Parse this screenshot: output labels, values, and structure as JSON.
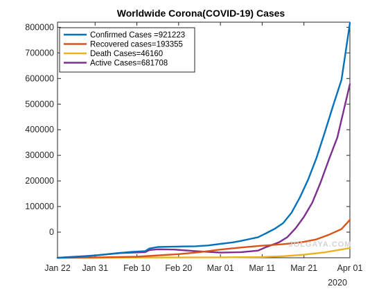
{
  "chart_data": {
    "type": "line",
    "title": "Worldwide Corona(COVID-19) Cases",
    "x_tick_labels": [
      "Jan 22",
      "Jan 31",
      "Feb 10",
      "Feb 20",
      "Mar 01",
      "Mar 11",
      "Mar 21",
      "Apr 01"
    ],
    "x_tick_dates": [
      "2020-01-22",
      "2020-01-31",
      "2020-02-10",
      "2020-02-20",
      "2020-03-01",
      "2020-03-11",
      "2020-03-21",
      "2020-04-01"
    ],
    "x_secondary_label": "2020",
    "xlim": [
      "2020-01-22",
      "2020-04-01"
    ],
    "ylim": [
      -100000,
      820000
    ],
    "y_ticks": [
      0,
      100000,
      200000,
      300000,
      400000,
      500000,
      600000,
      700000,
      800000
    ],
    "grid": false,
    "legend_position": "top-left",
    "series": [
      {
        "name": "Confirmed Cases =921223",
        "color": "#0072BD",
        "points": [
          [
            "2020-01-22",
            -100000
          ],
          [
            "2020-01-26",
            -98000
          ],
          [
            "2020-01-31",
            -91000
          ],
          [
            "2020-02-03",
            -86000
          ],
          [
            "2020-02-06",
            -81000
          ],
          [
            "2020-02-09",
            -77000
          ],
          [
            "2020-02-12",
            -74000
          ],
          [
            "2020-02-13",
            -64000
          ],
          [
            "2020-02-15",
            -58000
          ],
          [
            "2020-02-18",
            -57000
          ],
          [
            "2020-02-21",
            -56000
          ],
          [
            "2020-02-24",
            -55000
          ],
          [
            "2020-02-27",
            -52000
          ],
          [
            "2020-03-01",
            -46000
          ],
          [
            "2020-03-04",
            -40000
          ],
          [
            "2020-03-06",
            -34000
          ],
          [
            "2020-03-08",
            -27000
          ],
          [
            "2020-03-10",
            -20000
          ],
          [
            "2020-03-12",
            -4000
          ],
          [
            "2020-03-14",
            13000
          ],
          [
            "2020-03-16",
            35000
          ],
          [
            "2020-03-18",
            75000
          ],
          [
            "2020-03-20",
            135000
          ],
          [
            "2020-03-22",
            205000
          ],
          [
            "2020-03-24",
            290000
          ],
          [
            "2020-03-26",
            390000
          ],
          [
            "2020-03-28",
            495000
          ],
          [
            "2020-03-30",
            595000
          ],
          [
            "2020-04-01",
            816000
          ]
        ]
      },
      {
        "name": "Recovered cases=193355",
        "color": "#D95319",
        "points": [
          [
            "2020-01-22",
            -100000
          ],
          [
            "2020-01-31",
            -99000
          ],
          [
            "2020-02-10",
            -96000
          ],
          [
            "2020-02-20",
            -86000
          ],
          [
            "2020-02-25",
            -78000
          ],
          [
            "2020-03-01",
            -68000
          ],
          [
            "2020-03-06",
            -60000
          ],
          [
            "2020-03-11",
            -53000
          ],
          [
            "2020-03-16",
            -47000
          ],
          [
            "2020-03-19",
            -42000
          ],
          [
            "2020-03-21",
            -38000
          ],
          [
            "2020-03-24",
            -28000
          ],
          [
            "2020-03-27",
            -10000
          ],
          [
            "2020-03-30",
            12000
          ],
          [
            "2020-04-01",
            48000
          ]
        ]
      },
      {
        "name": "Death Cases=46160",
        "color": "#EDB120",
        "points": [
          [
            "2020-01-22",
            -100000
          ],
          [
            "2020-02-20",
            -99000
          ],
          [
            "2020-03-01",
            -98500
          ],
          [
            "2020-03-11",
            -97000
          ],
          [
            "2020-03-16",
            -94000
          ],
          [
            "2020-03-21",
            -88000
          ],
          [
            "2020-03-26",
            -79000
          ],
          [
            "2020-04-01",
            -62000
          ]
        ]
      },
      {
        "name": "Active Cases=681708",
        "color": "#7E2F8E",
        "points": [
          [
            "2020-01-22",
            -100000
          ],
          [
            "2020-01-31",
            -91000
          ],
          [
            "2020-02-06",
            -82000
          ],
          [
            "2020-02-12",
            -78000
          ],
          [
            "2020-02-13",
            -70000
          ],
          [
            "2020-02-15",
            -67000
          ],
          [
            "2020-02-19",
            -68000
          ],
          [
            "2020-02-24",
            -74000
          ],
          [
            "2020-03-01",
            -80000
          ],
          [
            "2020-03-06",
            -78000
          ],
          [
            "2020-03-10",
            -72000
          ],
          [
            "2020-03-12",
            -58000
          ],
          [
            "2020-03-15",
            -40000
          ],
          [
            "2020-03-17",
            -20000
          ],
          [
            "2020-03-19",
            15000
          ],
          [
            "2020-03-21",
            60000
          ],
          [
            "2020-03-23",
            115000
          ],
          [
            "2020-03-25",
            195000
          ],
          [
            "2020-03-27",
            285000
          ],
          [
            "2020-03-29",
            370000
          ],
          [
            "2020-04-01",
            578000
          ]
        ]
      }
    ]
  },
  "watermark": "JOLGAYA.COM"
}
